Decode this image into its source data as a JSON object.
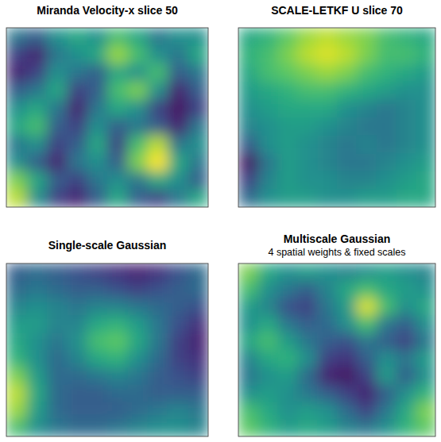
{
  "chart_data": [
    {
      "type": "heatmap",
      "title": "Miranda Velocity-x slice 50",
      "tick_labels": false,
      "zlim": [
        0,
        1
      ],
      "cells": [
        [
          0.4,
          0.3,
          0.5,
          0.6,
          0.5,
          0.7,
          0.6,
          0.4,
          0.5,
          0.5
        ],
        [
          0.2,
          0.1,
          0.4,
          0.5,
          0.6,
          0.85,
          0.7,
          0.5,
          0.4,
          0.6
        ],
        [
          0.1,
          0.2,
          0.5,
          0.4,
          0.3,
          0.6,
          0.5,
          0.7,
          0.3,
          0.4
        ],
        [
          0.3,
          0.4,
          0.6,
          0.2,
          0.3,
          0.7,
          0.8,
          0.5,
          0.1,
          0.3
        ],
        [
          0.5,
          0.6,
          0.4,
          0.1,
          0.4,
          0.6,
          0.5,
          0.2,
          0.05,
          0.2
        ],
        [
          0.6,
          0.7,
          0.3,
          0.2,
          0.5,
          0.3,
          0.4,
          0.3,
          0.1,
          0.4
        ],
        [
          0.4,
          0.5,
          0.2,
          0.3,
          0.6,
          0.2,
          0.7,
          0.9,
          0.4,
          0.5
        ],
        [
          0.5,
          0.3,
          0.1,
          0.4,
          0.5,
          0.3,
          0.8,
          1.0,
          0.6,
          0.4
        ],
        [
          0.8,
          0.6,
          0.3,
          0.2,
          0.4,
          0.5,
          0.4,
          0.6,
          0.5,
          0.3
        ],
        [
          0.9,
          0.5,
          0.2,
          0.1,
          0.3,
          0.6,
          0.3,
          0.2,
          0.4,
          0.6
        ]
      ]
    },
    {
      "type": "heatmap",
      "title": "SCALE-LETKF U slice 70",
      "tick_labels": false,
      "zlim": [
        0,
        1
      ],
      "cells": [
        [
          0.6,
          0.65,
          0.75,
          0.85,
          0.9,
          0.85,
          0.8,
          0.7,
          0.65,
          0.6
        ],
        [
          0.65,
          0.7,
          0.8,
          0.9,
          0.95,
          0.9,
          0.8,
          0.7,
          0.7,
          0.65
        ],
        [
          0.6,
          0.7,
          0.75,
          0.8,
          0.85,
          0.8,
          0.7,
          0.65,
          0.6,
          0.55
        ],
        [
          0.55,
          0.6,
          0.65,
          0.7,
          0.7,
          0.65,
          0.6,
          0.55,
          0.5,
          0.5
        ],
        [
          0.5,
          0.55,
          0.6,
          0.6,
          0.6,
          0.5,
          0.45,
          0.4,
          0.45,
          0.5
        ],
        [
          0.45,
          0.5,
          0.55,
          0.55,
          0.5,
          0.45,
          0.4,
          0.4,
          0.45,
          0.5
        ],
        [
          0.3,
          0.5,
          0.55,
          0.5,
          0.45,
          0.4,
          0.45,
          0.4,
          0.45,
          0.5
        ],
        [
          0.05,
          0.4,
          0.55,
          0.5,
          0.45,
          0.4,
          0.4,
          0.45,
          0.5,
          0.55
        ],
        [
          0.2,
          0.45,
          0.55,
          0.5,
          0.5,
          0.45,
          0.45,
          0.5,
          0.55,
          0.6
        ],
        [
          0.35,
          0.5,
          0.55,
          0.55,
          0.5,
          0.5,
          0.55,
          0.55,
          0.6,
          0.6
        ]
      ]
    },
    {
      "type": "heatmap",
      "title": "Single-scale Gaussian",
      "tick_labels": false,
      "zlim": [
        0,
        1
      ],
      "cells": [
        [
          0.3,
          0.35,
          0.3,
          0.25,
          0.2,
          0.15,
          0.1,
          0.15,
          0.25,
          0.35
        ],
        [
          0.35,
          0.4,
          0.35,
          0.3,
          0.3,
          0.25,
          0.2,
          0.25,
          0.3,
          0.35
        ],
        [
          0.45,
          0.5,
          0.45,
          0.4,
          0.45,
          0.45,
          0.4,
          0.35,
          0.3,
          0.25
        ],
        [
          0.55,
          0.55,
          0.45,
          0.45,
          0.6,
          0.65,
          0.55,
          0.4,
          0.25,
          0.15
        ],
        [
          0.6,
          0.5,
          0.4,
          0.5,
          0.7,
          0.75,
          0.6,
          0.4,
          0.2,
          0.1
        ],
        [
          0.65,
          0.5,
          0.35,
          0.45,
          0.6,
          0.65,
          0.5,
          0.35,
          0.2,
          0.15
        ],
        [
          0.8,
          0.55,
          0.35,
          0.35,
          0.4,
          0.45,
          0.4,
          0.3,
          0.25,
          0.2
        ],
        [
          0.9,
          0.6,
          0.35,
          0.3,
          0.3,
          0.35,
          0.35,
          0.3,
          0.3,
          0.3
        ],
        [
          0.85,
          0.55,
          0.35,
          0.3,
          0.3,
          0.3,
          0.35,
          0.4,
          0.45,
          0.4
        ],
        [
          0.7,
          0.5,
          0.4,
          0.35,
          0.35,
          0.4,
          0.45,
          0.5,
          0.5,
          0.45
        ]
      ]
    },
    {
      "type": "heatmap",
      "title": "Multiscale Gaussian",
      "subtitle": "4 spatial weights & fixed scales",
      "tick_labels": false,
      "zlim": [
        0,
        1
      ],
      "cells": [
        [
          0.8,
          0.6,
          0.5,
          0.55,
          0.5,
          0.45,
          0.5,
          0.55,
          0.5,
          0.45
        ],
        [
          0.7,
          0.5,
          0.4,
          0.3,
          0.45,
          0.6,
          0.7,
          0.6,
          0.55,
          0.5
        ],
        [
          0.55,
          0.45,
          0.25,
          0.2,
          0.4,
          0.55,
          0.95,
          0.7,
          0.5,
          0.6
        ],
        [
          0.5,
          0.6,
          0.4,
          0.3,
          0.35,
          0.5,
          0.7,
          0.4,
          0.3,
          0.5
        ],
        [
          0.6,
          0.7,
          0.55,
          0.4,
          0.3,
          0.25,
          0.4,
          0.3,
          0.2,
          0.4
        ],
        [
          0.45,
          0.6,
          0.65,
          0.5,
          0.2,
          0.15,
          0.3,
          0.5,
          0.4,
          0.55
        ],
        [
          0.4,
          0.5,
          0.55,
          0.35,
          0.1,
          0.05,
          0.2,
          0.55,
          0.3,
          0.5
        ],
        [
          0.5,
          0.55,
          0.5,
          0.4,
          0.3,
          0.2,
          0.1,
          0.3,
          0.5,
          0.65
        ],
        [
          0.7,
          0.6,
          0.5,
          0.55,
          0.5,
          0.35,
          0.2,
          0.4,
          0.6,
          0.8
        ],
        [
          0.75,
          0.65,
          0.55,
          0.6,
          0.55,
          0.45,
          0.4,
          0.5,
          0.65,
          0.75
        ]
      ]
    }
  ]
}
